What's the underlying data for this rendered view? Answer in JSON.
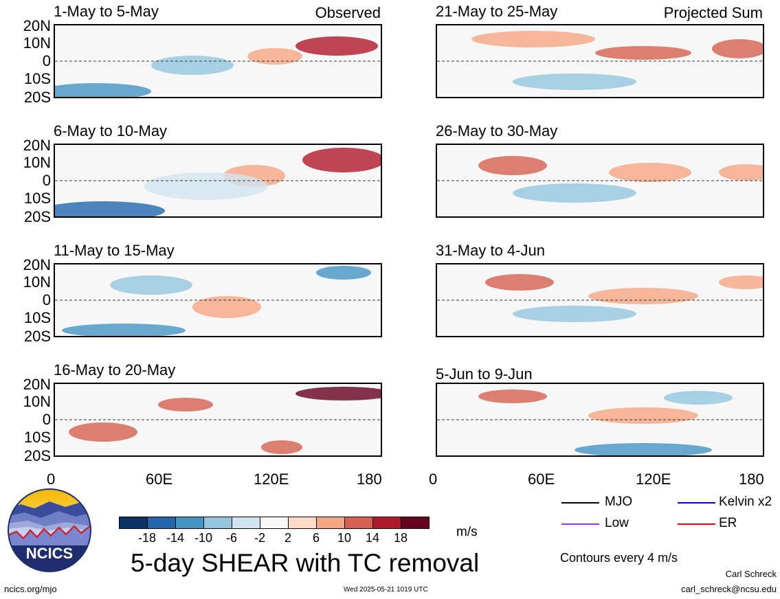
{
  "panels": [
    {
      "title": "1-May to 5-May",
      "label": "Observed"
    },
    {
      "title": "6-May to 10-May",
      "label": ""
    },
    {
      "title": "11-May to 15-May",
      "label": ""
    },
    {
      "title": "16-May to 20-May",
      "label": ""
    },
    {
      "title": "21-May to 25-May",
      "label": "Projected Sum"
    },
    {
      "title": "26-May to 30-May",
      "label": ""
    },
    {
      "title": "31-May to 4-Jun",
      "label": ""
    },
    {
      "title": "5-Jun to 9-Jun",
      "label": ""
    }
  ],
  "lat_labels": [
    "20N",
    "10N",
    "0",
    "10S",
    "20S"
  ],
  "lon_labels": [
    "0",
    "60E",
    "120E",
    "180"
  ],
  "colorbar": {
    "ticks": [
      "-18",
      "-14",
      "-10",
      "-6",
      "-2",
      "2",
      "6",
      "10",
      "14",
      "18"
    ],
    "units": "m/s",
    "colors": [
      "#0a3267",
      "#2166ac",
      "#4393c3",
      "#92c5de",
      "#d1e5f0",
      "#f7f7f7",
      "#fddbc7",
      "#f4a582",
      "#d6604d",
      "#b2182b",
      "#67001f"
    ]
  },
  "main_title": "5-day SHEAR with TC removal",
  "legend": {
    "items": [
      {
        "label": "MJO",
        "color": "#000000"
      },
      {
        "label": "Kelvin x2",
        "color": "#0000ee"
      },
      {
        "label": "Low",
        "color": "#9b30ff"
      },
      {
        "label": "ER",
        "color": "#ee0000"
      }
    ],
    "contours_note": "Contours every 4 m/s"
  },
  "logo": {
    "text": "NCICS"
  },
  "footer": {
    "left": "ncics.org/mjo",
    "center": "Wed 2025-05-21 1019 UTC",
    "author": "Carl Schreck",
    "email": "carl_schreck@ncsu.edu"
  }
}
